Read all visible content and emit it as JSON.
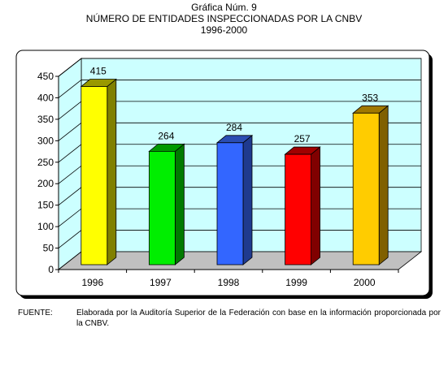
{
  "header": {
    "line1": "Gráfica Núm. 9",
    "line2": "NÚMERO DE ENTIDADES INSPECCIONADAS POR LA CNBV",
    "line3": "1996-2000"
  },
  "source": {
    "label": "FUENTE:",
    "text": "Elaborada por la Auditoría Superior de la Federación con base en la información proporcionada por la CNBV."
  },
  "chart_data": {
    "type": "bar",
    "title": "NÚMERO DE ENTIDADES INSPECCIONADAS POR LA CNBV",
    "subtitle": "1996-2000",
    "xlabel": "",
    "ylabel": "",
    "categories": [
      "1996",
      "1997",
      "1998",
      "1999",
      "2000"
    ],
    "values": [
      415,
      264,
      284,
      257,
      353
    ],
    "data_labels": [
      "415",
      "264",
      "284",
      "257",
      "353"
    ],
    "yticks": [
      "0",
      "50",
      "100",
      "150",
      "200",
      "250",
      "300",
      "350",
      "400",
      "450"
    ],
    "ylim": [
      0,
      450
    ],
    "grid": true,
    "legend": "none",
    "three_d": true,
    "colors": {
      "bars": [
        {
          "front": "#ffff00",
          "side": "#808000",
          "top": "#999900"
        },
        {
          "front": "#00ee00",
          "side": "#007a00",
          "top": "#009900"
        },
        {
          "front": "#3366ff",
          "side": "#1f3a8f",
          "top": "#2a4db3"
        },
        {
          "front": "#ff0000",
          "side": "#800000",
          "top": "#a00000"
        },
        {
          "front": "#ffcc00",
          "side": "#806000",
          "top": "#a07800"
        }
      ],
      "plot_wall": "#ccffff",
      "floor": "#c0c0c0",
      "frame_shadow": "#000000"
    }
  }
}
